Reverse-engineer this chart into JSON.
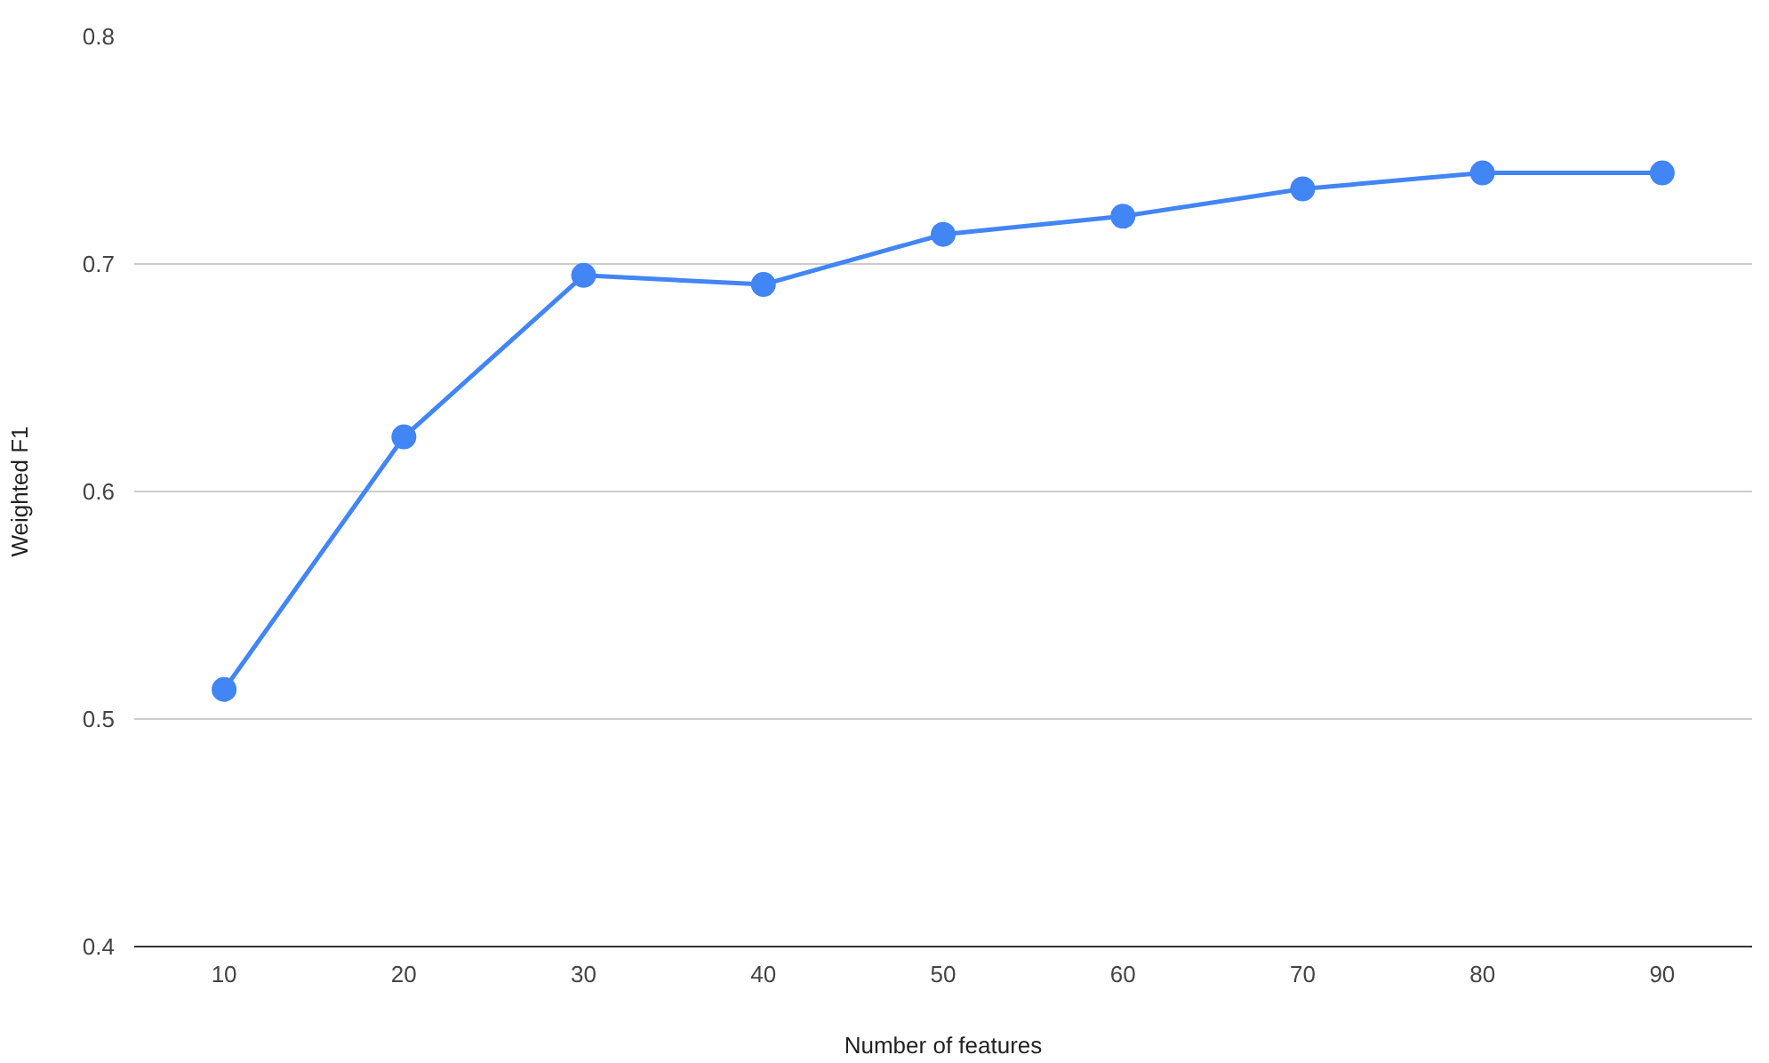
{
  "chart_data": {
    "type": "line",
    "xlabel": "Number of features",
    "ylabel": "Weighted F1",
    "categories": [
      "10",
      "20",
      "30",
      "40",
      "50",
      "60",
      "70",
      "80",
      "90"
    ],
    "series": [
      {
        "color": "#4285f4",
        "values": [
          0.513,
          0.624,
          0.695,
          0.691,
          0.713,
          0.721,
          0.733,
          0.74,
          0.74
        ]
      }
    ],
    "ylim": [
      0.4,
      0.8
    ],
    "yticks": [
      0.4,
      0.5,
      0.6,
      0.7,
      0.8
    ],
    "grid": "y",
    "marker": "circle",
    "line_style": "solid"
  }
}
